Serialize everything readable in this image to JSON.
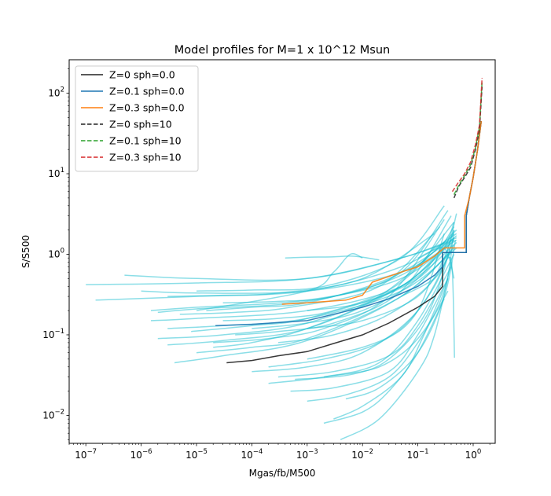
{
  "chart_data": {
    "type": "line",
    "title": "Model profiles for M=1 x 10^12 Msun",
    "xlabel": "Mgas/fb/M500",
    "ylabel": "S/S500",
    "xscale": "log",
    "yscale": "log",
    "xlim": [
      5e-08,
      2.5
    ],
    "ylim": [
      0.0045,
      260
    ],
    "xticks": [
      {
        "value": 1e-07,
        "base": "10",
        "exp": "−7"
      },
      {
        "value": 1e-06,
        "base": "10",
        "exp": "−6"
      },
      {
        "value": 1e-05,
        "base": "10",
        "exp": "−5"
      },
      {
        "value": 0.0001,
        "base": "10",
        "exp": "−4"
      },
      {
        "value": 0.001,
        "base": "10",
        "exp": "−3"
      },
      {
        "value": 0.01,
        "base": "10",
        "exp": "−2"
      },
      {
        "value": 0.1,
        "base": "10",
        "exp": "−1"
      },
      {
        "value": 1,
        "base": "10",
        "exp": "0"
      }
    ],
    "yticks": [
      {
        "value": 0.01,
        "base": "10",
        "exp": "−2"
      },
      {
        "value": 0.1,
        "base": "10",
        "exp": "−1"
      },
      {
        "value": 1,
        "base": "10",
        "exp": "0"
      },
      {
        "value": 10,
        "base": "10",
        "exp": "1"
      },
      {
        "value": 100,
        "base": "10",
        "exp": "2"
      }
    ],
    "legend_position": "top-left",
    "series": [
      {
        "name": "Z=0 sph=0.0",
        "color": "#222222",
        "dash": "solid",
        "x": [
          3.5e-05,
          0.0001,
          0.0003,
          0.001,
          0.003,
          0.01,
          0.03,
          0.1,
          0.2,
          0.28,
          0.28,
          0.75,
          0.75,
          0.85,
          1.0,
          1.2,
          1.4
        ],
        "y": [
          0.045,
          0.048,
          0.055,
          0.062,
          0.078,
          0.1,
          0.14,
          0.22,
          0.3,
          0.4,
          1.05,
          1.05,
          3.0,
          5.0,
          9.0,
          20.0,
          45.0
        ]
      },
      {
        "name": "Z=0.1 sph=0.0",
        "color": "#1f77b4",
        "dash": "solid",
        "x": [
          2.2e-05,
          0.0001,
          0.001,
          0.003,
          0.01,
          0.03,
          0.1,
          0.2,
          0.28,
          0.28,
          0.75,
          0.75,
          0.85,
          1.0,
          1.2,
          1.4
        ],
        "y": [
          0.13,
          0.135,
          0.15,
          0.18,
          0.22,
          0.28,
          0.4,
          0.55,
          0.7,
          1.05,
          1.05,
          3.0,
          5.0,
          9.0,
          20.0,
          45.0
        ]
      },
      {
        "name": "Z=0.3 sph=0.0",
        "color": "#ff7f0e",
        "dash": "solid",
        "x": [
          0.00035,
          0.001,
          0.005,
          0.01,
          0.015,
          0.05,
          0.1,
          0.2,
          0.3,
          0.7,
          0.7,
          0.85,
          1.0,
          1.2,
          1.4
        ],
        "y": [
          0.24,
          0.25,
          0.27,
          0.31,
          0.45,
          0.6,
          0.7,
          0.95,
          1.2,
          1.2,
          3.0,
          5.0,
          9.0,
          20.0,
          45.0
        ]
      },
      {
        "name": "Z=0 sph=10",
        "color": "#222222",
        "dash": "dashed",
        "x": [
          0.45,
          0.55,
          0.7,
          0.9,
          1.1,
          1.3,
          1.45
        ],
        "y": [
          5.0,
          7.0,
          9.0,
          12.0,
          20.0,
          35.0,
          120.0
        ]
      },
      {
        "name": "Z=0.1 sph=10",
        "color": "#2ca02c",
        "dash": "dashed",
        "x": [
          0.45,
          0.55,
          0.7,
          0.9,
          1.1,
          1.3,
          1.45
        ],
        "y": [
          5.5,
          7.2,
          9.5,
          13.0,
          21.0,
          38.0,
          140.0
        ]
      },
      {
        "name": "Z=0.3 sph=10",
        "color": "#d62728",
        "dash": "dashed",
        "x": [
          0.42,
          0.52,
          0.7,
          0.9,
          1.1,
          1.3,
          1.45
        ],
        "y": [
          6.0,
          7.5,
          10.0,
          14.0,
          23.0,
          40.0,
          155.0
        ]
      }
    ],
    "background_profiles": {
      "color": "#17becf",
      "curves": [
        {
          "x": [
            1e-07,
            1e-05,
            0.001,
            0.05,
            0.45
          ],
          "y": [
            0.42,
            0.44,
            0.5,
            0.9,
            1.5
          ]
        },
        {
          "x": [
            1.5e-07,
            1e-05,
            0.001,
            0.05,
            0.5
          ],
          "y": [
            0.27,
            0.3,
            0.35,
            0.7,
            1.8
          ]
        },
        {
          "x": [
            5e-07,
            1e-05,
            0.001,
            0.05,
            0.5
          ],
          "y": [
            0.55,
            0.5,
            0.5,
            0.9,
            1.6
          ]
        },
        {
          "x": [
            1e-06,
            1e-05,
            0.001,
            0.05,
            0.5
          ],
          "y": [
            0.35,
            0.33,
            0.35,
            0.6,
            1.5
          ]
        },
        {
          "x": [
            1.5e-06,
            1e-05,
            0.001,
            0.05,
            0.5
          ],
          "y": [
            0.2,
            0.22,
            0.27,
            0.5,
            1.7
          ]
        },
        {
          "x": [
            2e-06,
            1e-05,
            0.001,
            0.05,
            0.5
          ],
          "y": [
            0.19,
            0.21,
            0.26,
            0.55,
            2.0
          ]
        },
        {
          "x": [
            1.5e-06,
            1e-05,
            0.001,
            0.05,
            0.5
          ],
          "y": [
            0.15,
            0.16,
            0.2,
            0.4,
            1.4
          ]
        },
        {
          "x": [
            3e-06,
            3e-05,
            0.001,
            0.05,
            0.5
          ],
          "y": [
            0.12,
            0.13,
            0.16,
            0.35,
            1.2
          ]
        },
        {
          "x": [
            2e-06,
            3e-05,
            0.001,
            0.05,
            0.45
          ],
          "y": [
            0.09,
            0.1,
            0.14,
            0.4,
            1.6
          ]
        },
        {
          "x": [
            3e-06,
            3e-05,
            0.001,
            0.05,
            0.45
          ],
          "y": [
            0.075,
            0.085,
            0.12,
            0.4,
            1.5
          ]
        },
        {
          "x": [
            4e-06,
            3e-05,
            0.001,
            0.05,
            0.45
          ],
          "y": [
            0.045,
            0.055,
            0.085,
            0.3,
            1.2
          ]
        },
        {
          "x": [
            8e-06,
            0.0001,
            0.001,
            0.05,
            0.45
          ],
          "y": [
            0.11,
            0.13,
            0.16,
            0.4,
            1.8
          ]
        },
        {
          "x": [
            1e-05,
            0.0001,
            0.001,
            0.05,
            0.4
          ],
          "y": [
            0.06,
            0.07,
            0.09,
            0.3,
            1.1
          ]
        },
        {
          "x": [
            1.5e-05,
            0.0001,
            0.001,
            0.03,
            0.35
          ],
          "y": [
            0.2,
            0.22,
            0.25,
            0.5,
            1.4
          ]
        },
        {
          "x": [
            2e-05,
            0.0001,
            0.001,
            0.02,
            0.3
          ],
          "y": [
            0.07,
            0.08,
            0.12,
            0.3,
            1.4
          ]
        },
        {
          "x": [
            3e-05,
            0.0003,
            0.003,
            0.05,
            0.45
          ],
          "y": [
            0.15,
            0.16,
            0.2,
            0.45,
            2.5
          ]
        },
        {
          "x": [
            5e-05,
            0.0003,
            0.003,
            0.05,
            0.4
          ],
          "y": [
            0.1,
            0.11,
            0.14,
            0.35,
            3.0
          ]
        },
        {
          "x": [
            0.0001,
            0.001,
            0.01,
            0.1,
            0.45
          ],
          "y": [
            0.035,
            0.04,
            0.06,
            0.2,
            1.3
          ]
        },
        {
          "x": [
            0.0002,
            0.002,
            0.02,
            0.1,
            0.45
          ],
          "y": [
            0.025,
            0.03,
            0.045,
            0.15,
            1.0
          ]
        },
        {
          "x": [
            0.0003,
            0.003,
            0.03,
            0.1,
            0.4
          ],
          "y": [
            0.03,
            0.035,
            0.055,
            0.13,
            0.7
          ]
        },
        {
          "x": [
            0.0005,
            0.003,
            0.03,
            0.1,
            0.35
          ],
          "y": [
            0.02,
            0.022,
            0.035,
            0.1,
            0.5
          ]
        },
        {
          "x": [
            0.001,
            0.005,
            0.03,
            0.1,
            0.35
          ],
          "y": [
            0.015,
            0.018,
            0.03,
            0.08,
            0.35
          ]
        },
        {
          "x": [
            0.002,
            0.01,
            0.03,
            0.1,
            0.3
          ],
          "y": [
            0.008,
            0.011,
            0.02,
            0.06,
            0.28
          ]
        },
        {
          "x": [
            0.003,
            0.01,
            0.05,
            0.12,
            0.35
          ],
          "y": [
            0.009,
            0.013,
            0.03,
            0.09,
            0.5
          ]
        },
        {
          "x": [
            0.004,
            0.02,
            0.1,
            0.2,
            0.4
          ],
          "y": [
            0.005,
            0.009,
            0.035,
            0.1,
            0.8
          ]
        },
        {
          "x": [
            0.005,
            0.02,
            0.1,
            0.3,
            0.48
          ],
          "y": [
            0.016,
            0.022,
            0.06,
            0.3,
            1.5
          ]
        },
        {
          "x": [
            0.001,
            0.01,
            0.05,
            0.2,
            0.45
          ],
          "y": [
            0.05,
            0.07,
            0.12,
            0.4,
            1.6
          ]
        },
        {
          "x": [
            0.0003,
            0.003,
            0.03,
            0.2,
            0.45
          ],
          "y": [
            0.08,
            0.1,
            0.18,
            0.5,
            2.0
          ]
        },
        {
          "x": [
            0.0001,
            0.001,
            0.01,
            0.1,
            0.45
          ],
          "y": [
            0.12,
            0.14,
            0.2,
            0.5,
            2.2
          ]
        },
        {
          "x": [
            3e-05,
            0.0003,
            0.003,
            0.05,
            0.35
          ],
          "y": [
            0.25,
            0.26,
            0.3,
            0.6,
            3.5
          ]
        },
        {
          "x": [
            1e-05,
            0.0001,
            0.002,
            0.05,
            0.3
          ],
          "y": [
            0.35,
            0.36,
            0.4,
            0.9,
            4.0
          ]
        },
        {
          "x": [
            0.0004,
            0.001,
            0.003,
            0.006,
            0.01,
            0.02
          ],
          "y": [
            0.9,
            0.92,
            0.93,
            0.95,
            0.92,
            0.85
          ]
        },
        {
          "x": [
            1e-05,
            0.001,
            0.003,
            0.006,
            0.01
          ],
          "y": [
            0.2,
            0.35,
            0.6,
            1.0,
            0.9
          ]
        },
        {
          "x": [
            0.05,
            0.2,
            0.35,
            0.42,
            0.46
          ],
          "y": [
            0.3,
            0.5,
            0.9,
            0.6,
            0.052
          ]
        },
        {
          "x": [
            0.1,
            0.25,
            0.35,
            0.45
          ],
          "y": [
            0.9,
            1.2,
            1.0,
            0.5
          ]
        },
        {
          "x": [
            0.001,
            0.01,
            0.1,
            0.3,
            0.45
          ],
          "y": [
            0.2,
            0.25,
            0.5,
            1.2,
            2.5
          ]
        },
        {
          "x": [
            3e-06,
            3e-05,
            0.0003,
            0.01,
            0.2
          ],
          "y": [
            0.3,
            0.31,
            0.33,
            0.5,
            1.8
          ]
        },
        {
          "x": [
            5e-06,
            5e-05,
            0.0005,
            0.02,
            0.25
          ],
          "y": [
            0.18,
            0.19,
            0.22,
            0.4,
            2.2
          ]
        },
        {
          "x": [
            2e-05,
            0.0002,
            0.002,
            0.03,
            0.3
          ],
          "y": [
            0.08,
            0.09,
            0.12,
            0.3,
            2.7
          ]
        },
        {
          "x": [
            0.0002,
            0.002,
            0.02,
            0.1,
            0.3
          ],
          "y": [
            0.04,
            0.05,
            0.08,
            0.2,
            1.8
          ]
        },
        {
          "x": [
            0.0006,
            0.006,
            0.03,
            0.15,
            0.4
          ],
          "y": [
            0.028,
            0.032,
            0.05,
            0.18,
            1.3
          ]
        },
        {
          "x": [
            0.001,
            0.01,
            0.1,
            0.3,
            0.5
          ],
          "y": [
            0.12,
            0.15,
            0.3,
            0.9,
            3.2
          ]
        },
        {
          "x": [
            0.002,
            0.02,
            0.1,
            0.3,
            0.45
          ],
          "y": [
            0.03,
            0.04,
            0.09,
            0.35,
            2.0
          ]
        }
      ]
    }
  }
}
